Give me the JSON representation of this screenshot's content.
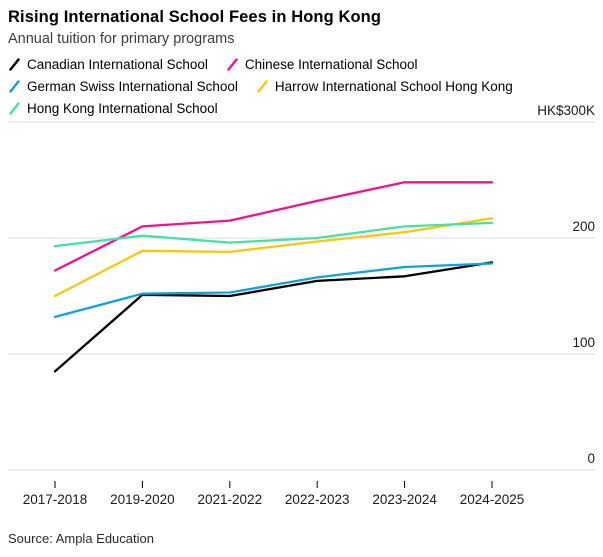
{
  "header": {
    "title": "Rising International School Fees in Hong Kong",
    "subtitle": "Annual tuition for primary programs"
  },
  "source": "Source: Ampla Education",
  "colors": {
    "background": "#ffffff",
    "grid": "#dcdcdc",
    "axis_text": "#1a1a1a",
    "tick_mark": "#000000"
  },
  "chart_data": {
    "type": "line",
    "title": "Rising International School Fees in Hong Kong",
    "subtitle": "Annual tuition for primary programs",
    "unit": "HK$ thousands per year",
    "x": [
      "2017-2018",
      "2019-2020",
      "2021-2022",
      "2022-2023",
      "2023-2024",
      "2024-2025"
    ],
    "ylim": [
      0,
      300
    ],
    "yticks": [
      0,
      100,
      200,
      300
    ],
    "ytick_labels": [
      "0",
      "100",
      "200",
      "HK$300K"
    ],
    "grid": "horizontal",
    "legend_position": "top",
    "series": [
      {
        "name": "Canadian International School",
        "color": "#000000",
        "values": [
          85,
          151,
          150,
          163,
          167,
          179
        ]
      },
      {
        "name": "Chinese International School",
        "color": "#f2128f",
        "values": [
          172,
          210,
          215,
          232,
          248,
          248
        ]
      },
      {
        "name": "German Swiss International School",
        "color": "#12a1dd",
        "values": [
          132,
          152,
          153,
          166,
          175,
          178
        ]
      },
      {
        "name": "Harrow International School Hong Kong",
        "color": "#fcc510",
        "values": [
          150,
          189,
          188,
          197,
          205,
          217
        ]
      },
      {
        "name": "Hong Kong International School",
        "color": "#47e0a6",
        "values": [
          193,
          202,
          196,
          200,
          210,
          213
        ]
      }
    ]
  }
}
